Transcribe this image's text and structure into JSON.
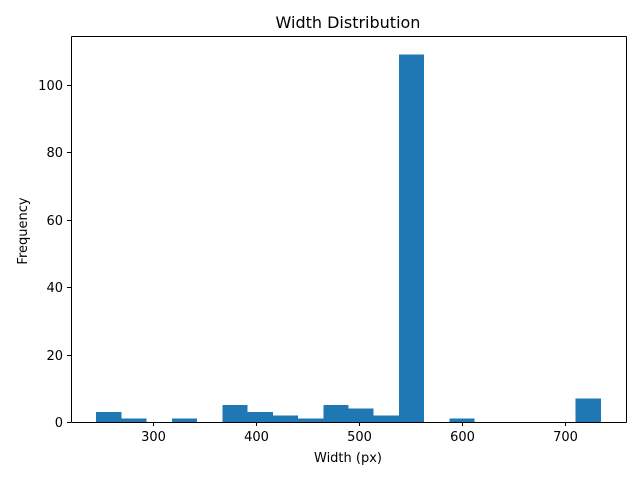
{
  "chart_data": {
    "type": "bar",
    "title": "Width Distribution",
    "xlabel": "Width (px)",
    "ylabel": "Frequency",
    "bar_color": "#1f77b4",
    "bin_width": 24.5,
    "bins": [
      {
        "x0": 245.0,
        "x1": 269.5,
        "value": 3
      },
      {
        "x0": 269.5,
        "x1": 294.0,
        "value": 1
      },
      {
        "x0": 294.0,
        "x1": 318.5,
        "value": 0
      },
      {
        "x0": 318.5,
        "x1": 343.0,
        "value": 1
      },
      {
        "x0": 343.0,
        "x1": 367.5,
        "value": 0
      },
      {
        "x0": 367.5,
        "x1": 392.0,
        "value": 5
      },
      {
        "x0": 392.0,
        "x1": 416.5,
        "value": 3
      },
      {
        "x0": 416.5,
        "x1": 441.0,
        "value": 2
      },
      {
        "x0": 441.0,
        "x1": 465.5,
        "value": 1
      },
      {
        "x0": 465.5,
        "x1": 490.0,
        "value": 5
      },
      {
        "x0": 490.0,
        "x1": 514.5,
        "value": 4
      },
      {
        "x0": 514.5,
        "x1": 539.0,
        "value": 2
      },
      {
        "x0": 539.0,
        "x1": 563.5,
        "value": 109
      },
      {
        "x0": 563.5,
        "x1": 588.0,
        "value": 0
      },
      {
        "x0": 588.0,
        "x1": 612.5,
        "value": 1
      },
      {
        "x0": 612.5,
        "x1": 637.0,
        "value": 0
      },
      {
        "x0": 637.0,
        "x1": 661.5,
        "value": 0
      },
      {
        "x0": 661.5,
        "x1": 686.0,
        "value": 0
      },
      {
        "x0": 686.0,
        "x1": 710.5,
        "value": 0
      },
      {
        "x0": 710.5,
        "x1": 735.0,
        "value": 7
      }
    ],
    "xlim": [
      220.5,
      759.5
    ],
    "ylim": [
      0,
      114.45
    ],
    "xticks": [
      300,
      400,
      500,
      600,
      700
    ],
    "xtick_labels": [
      "300",
      "400",
      "500",
      "600",
      "700"
    ],
    "yticks": [
      0,
      20,
      40,
      60,
      80,
      100
    ],
    "ytick_labels": [
      "0",
      "20",
      "40",
      "60",
      "80",
      "100"
    ],
    "grid": false,
    "legend": "none"
  }
}
